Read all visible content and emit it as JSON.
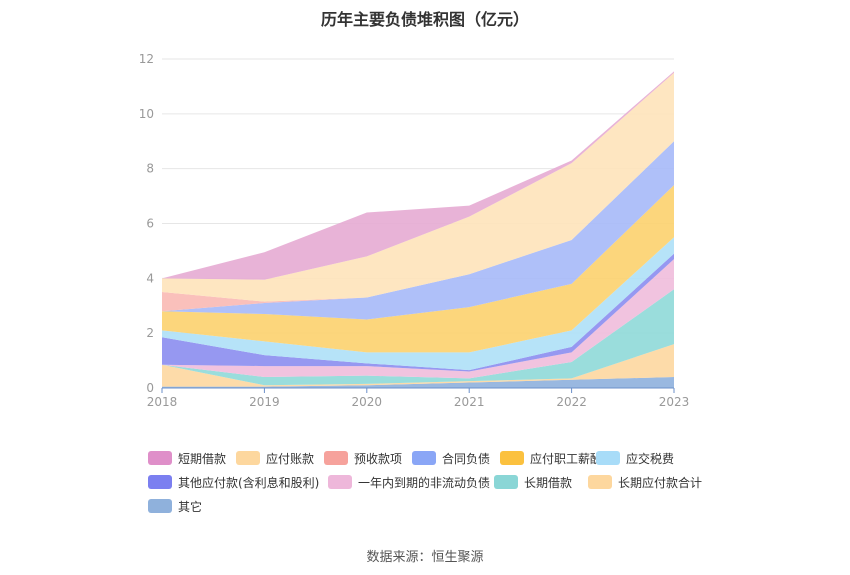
{
  "title": "历年主要负债堆积图（亿元）",
  "source": "数据来源：恒生聚源",
  "chart_data": {
    "type": "area",
    "stacked": true,
    "categories": [
      "2018",
      "2019",
      "2020",
      "2021",
      "2022",
      "2023"
    ],
    "ylim": [
      0,
      12
    ],
    "yticks": [
      0,
      2,
      4,
      6,
      8,
      10,
      12
    ],
    "grid": true,
    "legend_position": "bottom",
    "series": [
      {
        "name": "其它",
        "color": "#8eb0dd",
        "values": [
          0.05,
          0.05,
          0.1,
          0.2,
          0.3,
          0.4
        ]
      },
      {
        "name": "长期应付款合计",
        "color": "#fdd7a0",
        "values": [
          0.8,
          0.05,
          0.05,
          0.05,
          0.05,
          1.2
        ]
      },
      {
        "name": "长期借款",
        "color": "#8fd9d8",
        "values": [
          0.0,
          0.3,
          0.3,
          0.1,
          0.6,
          2.0
        ]
      },
      {
        "name": "一年内到期的非流动负债",
        "color": "#efbddb",
        "values": [
          0.0,
          0.4,
          0.35,
          0.25,
          0.35,
          1.1
        ]
      },
      {
        "name": "其他应付款(含利息和股利)",
        "color": "#8b8df0",
        "values": [
          1.0,
          0.4,
          0.1,
          0.05,
          0.2,
          0.2
        ]
      },
      {
        "name": "应交税费",
        "color": "#aee0f7",
        "values": [
          0.25,
          0.5,
          0.4,
          0.65,
          0.6,
          0.6
        ]
      },
      {
        "name": "应付职工薪酬",
        "color": "#fcd26e",
        "values": [
          0.7,
          1.0,
          1.2,
          1.65,
          1.7,
          1.9
        ]
      },
      {
        "name": "合同负债",
        "color": "#a6b9f8",
        "values": [
          0.0,
          0.4,
          0.8,
          1.2,
          1.6,
          1.6
        ]
      },
      {
        "name": "预收款项",
        "color": "#f9b9b4",
        "values": [
          0.7,
          0.05,
          0.0,
          0.0,
          0.0,
          0.0
        ]
      },
      {
        "name": "应付账款",
        "color": "#fee3ba",
        "values": [
          0.5,
          0.8,
          1.5,
          2.1,
          2.8,
          2.5
        ]
      },
      {
        "name": "短期借款",
        "color": "#e6abd3",
        "values": [
          0.0,
          1.0,
          1.6,
          0.4,
          0.1,
          0.05
        ]
      }
    ],
    "legend_order": [
      "短期借款",
      "应付账款",
      "预收款项",
      "合同负债",
      "应付职工薪酬",
      "应交税费",
      "其他应付款(含利息和股利)",
      "一年内到期的非流动负债",
      "长期借款",
      "长期应付款合计",
      "其它"
    ]
  },
  "legend_colors": {
    "短期借款": "#df8fc9",
    "应付账款": "#fdd79e",
    "预收款项": "#f6a29c",
    "合同负债": "#8aa6f6",
    "应付职工薪酬": "#fbc13f",
    "应交税费": "#a8dcf8",
    "其他应付款(含利息和股利)": "#7b7ff0",
    "一年内到期的非流动负债": "#eeb7da",
    "长期借款": "#8ad6d6",
    "长期应付款合计": "#fdd79e",
    "其它": "#8fb1dc"
  }
}
